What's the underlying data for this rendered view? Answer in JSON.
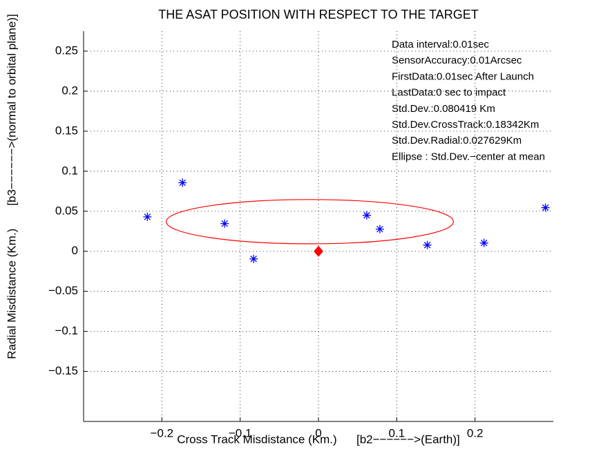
{
  "chart_data": {
    "type": "scatter",
    "title": "THE ASAT POSITION WITH RESPECT TO THE TARGET",
    "x_label": "Cross Track Misdistance (Km.)      [b2−−−−−−>(Earth)]",
    "y_label": "Radial Misdistance (Km.)       [b3−−−−−−>(normal to orbital plane)]",
    "annotations": [
      "Data interval:0.01sec",
      "SensorAccuracy:0.01Arcsec",
      "FirstData:0.01sec After Launch",
      "LastData:0 sec to impact",
      "Std.Dev.:0.080419 Km",
      "Std.Dev.CrossTrack:0.18342Km",
      "Std.Dev.Radial:0.027629Km",
      "Ellipse : Std.Dev.−center at mean"
    ],
    "series": [
      {
        "marker": "star",
        "color": "#0000ff",
        "x": [
          -0.2185,
          -0.1736,
          -0.1198,
          -0.0828,
          0.0617,
          0.0784,
          0.139,
          0.2115,
          0.2899
        ],
        "values": [
          0.043,
          0.0856,
          0.0346,
          -0.0095,
          0.045,
          0.0277,
          0.0078,
          0.0104,
          0.0545
        ]
      },
      {
        "marker": "diamond",
        "color": "#ff0000",
        "x": [
          0
        ],
        "values": [
          0
        ]
      }
    ],
    "ellipse": {
      "center": [
        -0.011,
        0.037
      ],
      "radii": [
        0.18342,
        0.027629
      ],
      "color": "#ff0000"
    },
    "xlim": [
      -0.3,
      0.3
    ],
    "ylim": [
      -0.2125,
      0.275
    ],
    "xticks": [
      {
        "value": -0.2,
        "label": "−0.2"
      },
      {
        "value": -0.1,
        "label": "−0.1"
      },
      0,
      0.1,
      0.2
    ],
    "yticks": [
      {
        "value": -0.15,
        "label": "−0.15"
      },
      {
        "value": -0.1,
        "label": "−0.1"
      },
      {
        "value": -0.05,
        "label": "−0.05"
      },
      0,
      0.05,
      0.1,
      0.15,
      0.2,
      0.25
    ],
    "grid": true
  }
}
